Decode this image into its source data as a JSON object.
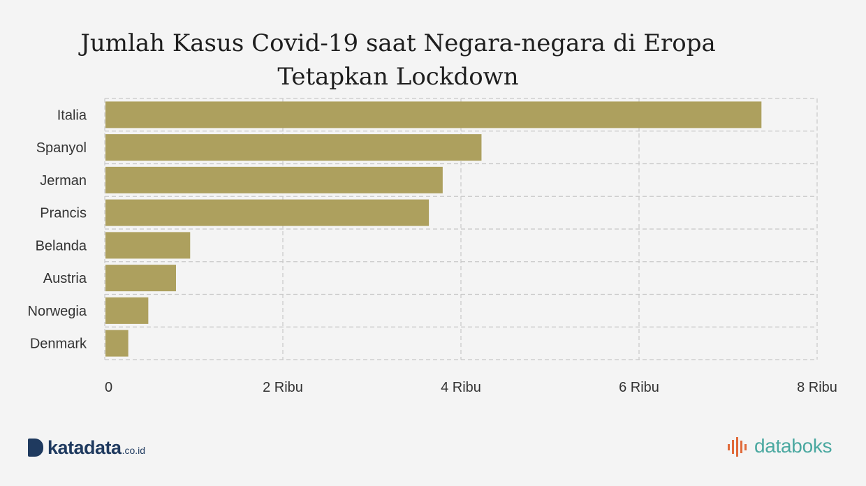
{
  "chart_data": {
    "type": "bar",
    "orientation": "horizontal",
    "title": "Jumlah Kasus Covid-19 saat Negara-negara di Eropa Tetapkan Lockdown",
    "categories": [
      "Italia",
      "Spanyol",
      "Jerman",
      "Prancis",
      "Belanda",
      "Austria",
      "Norwegia",
      "Denmark"
    ],
    "values": [
      7375,
      4231,
      3795,
      3640,
      959,
      800,
      489,
      264
    ],
    "x_ticks": [
      "0",
      "2 Ribu",
      "4 Ribu",
      "6 Ribu",
      "8 Ribu"
    ],
    "xlim": [
      0,
      8000
    ],
    "grid": true,
    "bar_color": "#ada05e"
  },
  "logos": {
    "left_brand": "katadata",
    "left_suffix": ".co.id",
    "right_brand": "databoks"
  }
}
